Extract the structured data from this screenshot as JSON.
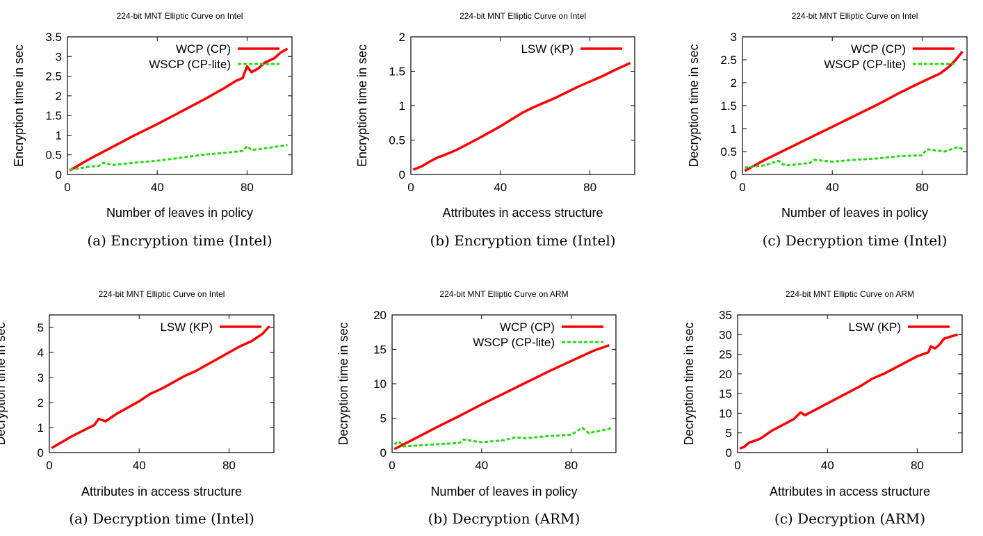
{
  "colors": {
    "wcp": "#ff0000",
    "wscp": "#22dd11",
    "axis": "#000000"
  },
  "chart_data": [
    {
      "type": "line",
      "title": "224-bit MNT Elliptic Curve on Intel",
      "xlabel": "Number of leaves in policy",
      "ylabel": "Encryption time in sec",
      "caption": "(a) Encryption time (Intel)",
      "xlim": [
        0,
        100
      ],
      "ylim": [
        0,
        3.5
      ],
      "xticks": [
        "0",
        "40",
        "80"
      ],
      "yticks": [
        "0",
        "0.5",
        "1",
        "1.5",
        "2",
        "2.5",
        "3",
        "3.5"
      ],
      "legend_position": "top-right",
      "series": [
        {
          "name": "WCP (CP)",
          "color": "#ff0000",
          "style": "solid",
          "x": [
            1,
            10,
            20,
            30,
            40,
            50,
            60,
            70,
            75,
            78,
            80,
            82,
            85,
            88,
            92,
            95,
            98
          ],
          "y": [
            0.1,
            0.4,
            0.7,
            1.0,
            1.28,
            1.58,
            1.88,
            2.2,
            2.38,
            2.45,
            2.75,
            2.6,
            2.7,
            2.85,
            2.95,
            3.1,
            3.2
          ]
        },
        {
          "name": "WSCP (CP-lite)",
          "color": "#22dd11",
          "style": "dashed",
          "x": [
            1,
            10,
            14,
            16,
            20,
            30,
            40,
            50,
            60,
            70,
            78,
            80,
            82,
            90,
            98
          ],
          "y": [
            0.12,
            0.2,
            0.22,
            0.3,
            0.24,
            0.3,
            0.35,
            0.42,
            0.5,
            0.55,
            0.6,
            0.72,
            0.62,
            0.68,
            0.75
          ]
        }
      ]
    },
    {
      "type": "line",
      "title": "224-bit MNT Elliptic Curve on Intel",
      "xlabel": "Attributes in access structure",
      "ylabel": "Encryption time in sec",
      "caption": "(b) Encryption time (Intel)",
      "xlim": [
        0,
        100
      ],
      "ylim": [
        0,
        2
      ],
      "xticks": [
        "0",
        "40",
        "80"
      ],
      "yticks": [
        "0",
        "0.5",
        "1",
        "1.5",
        "2"
      ],
      "legend_position": "top-right",
      "series": [
        {
          "name": "LSW (KP)",
          "color": "#ff0000",
          "style": "solid",
          "x": [
            1,
            5,
            8,
            12,
            14,
            20,
            30,
            40,
            45,
            50,
            55,
            60,
            65,
            70,
            75,
            80,
            85,
            90,
            98
          ],
          "y": [
            0.07,
            0.12,
            0.18,
            0.25,
            0.27,
            0.35,
            0.52,
            0.7,
            0.8,
            0.9,
            0.98,
            1.05,
            1.12,
            1.2,
            1.28,
            1.35,
            1.42,
            1.5,
            1.62
          ]
        }
      ]
    },
    {
      "type": "line",
      "title": "224-bit MNT Elliptic Curve on Intel",
      "xlabel": "Number of leaves in policy",
      "ylabel": "Decryption time in sec",
      "caption": "(c) Decryption time (Intel)",
      "xlim": [
        0,
        100
      ],
      "ylim": [
        0,
        3
      ],
      "xticks": [
        "0",
        "40",
        "80"
      ],
      "yticks": [
        "0",
        "0.5",
        "1",
        "1.5",
        "2",
        "2.5",
        "3"
      ],
      "legend_position": "top-right",
      "series": [
        {
          "name": "WCP (CP)",
          "color": "#ff0000",
          "style": "solid",
          "x": [
            1,
            10,
            20,
            30,
            40,
            50,
            60,
            70,
            80,
            88,
            92,
            95,
            98
          ],
          "y": [
            0.08,
            0.32,
            0.56,
            0.8,
            1.04,
            1.28,
            1.52,
            1.78,
            2.02,
            2.2,
            2.35,
            2.5,
            2.68
          ]
        },
        {
          "name": "WSCP (CP-lite)",
          "color": "#22dd11",
          "style": "dashed",
          "x": [
            1,
            10,
            16,
            18,
            20,
            30,
            32,
            40,
            50,
            60,
            70,
            80,
            82,
            90,
            96,
            98
          ],
          "y": [
            0.15,
            0.2,
            0.3,
            0.22,
            0.2,
            0.25,
            0.32,
            0.28,
            0.32,
            0.35,
            0.4,
            0.42,
            0.55,
            0.5,
            0.6,
            0.55
          ]
        }
      ]
    },
    {
      "type": "line",
      "title": "224-bit MNT Elliptic Curve on Intel",
      "xlabel": "Attributes in access structure",
      "ylabel": "Decryption time in sec",
      "caption": "(a) Decryption time (Intel)",
      "xlim": [
        0,
        100
      ],
      "ylim": [
        0,
        5.5
      ],
      "xticks": [
        "0",
        "40",
        "80"
      ],
      "yticks": [
        "0",
        "1",
        "2",
        "3",
        "4",
        "5"
      ],
      "legend_position": "top-right",
      "series": [
        {
          "name": "LSW (KP)",
          "color": "#ff0000",
          "style": "solid",
          "x": [
            1,
            10,
            20,
            22,
            25,
            30,
            40,
            45,
            50,
            55,
            60,
            65,
            70,
            75,
            80,
            85,
            90,
            95,
            98
          ],
          "y": [
            0.18,
            0.65,
            1.1,
            1.35,
            1.25,
            1.55,
            2.05,
            2.35,
            2.55,
            2.8,
            3.05,
            3.25,
            3.5,
            3.75,
            4.0,
            4.25,
            4.45,
            4.75,
            5.05
          ]
        }
      ]
    },
    {
      "type": "line",
      "title": "224-bit MNT Elliptic Curve on ARM",
      "xlabel": "Number of leaves in policy",
      "ylabel": "Decryption time in sec",
      "caption": "(b) Decryption (ARM)",
      "xlim": [
        0,
        100
      ],
      "ylim": [
        0,
        20
      ],
      "xticks": [
        "0",
        "40",
        "80"
      ],
      "yticks": [
        "0",
        "5",
        "10",
        "15",
        "20"
      ],
      "legend_position": "top-right",
      "series": [
        {
          "name": "WCP (CP)",
          "color": "#ff0000",
          "style": "solid",
          "x": [
            1,
            10,
            20,
            30,
            40,
            50,
            60,
            70,
            80,
            90,
            97
          ],
          "y": [
            0.5,
            2.0,
            3.7,
            5.3,
            7.0,
            8.6,
            10.2,
            11.8,
            13.3,
            14.8,
            15.6
          ]
        },
        {
          "name": "WSCP (CP-lite)",
          "color": "#22dd11",
          "style": "dashed",
          "x": [
            1,
            3,
            5,
            10,
            20,
            30,
            32,
            40,
            50,
            55,
            60,
            70,
            80,
            85,
            88,
            90,
            95,
            98
          ],
          "y": [
            1.2,
            1.6,
            0.9,
            1.0,
            1.2,
            1.4,
            1.9,
            1.5,
            1.8,
            2.2,
            2.1,
            2.4,
            2.6,
            3.6,
            2.8,
            3.0,
            3.3,
            3.6
          ]
        }
      ]
    },
    {
      "type": "line",
      "title": "224-bit MNT Elliptic Curve on ARM",
      "xlabel": "Attributes in access structure",
      "ylabel": "Decryption time in sec",
      "caption": "(c) Decryption (ARM)",
      "xlim": [
        0,
        100
      ],
      "ylim": [
        0,
        35
      ],
      "xticks": [
        "0",
        "40",
        "80"
      ],
      "yticks": [
        "0",
        "5",
        "10",
        "15",
        "20",
        "25",
        "30",
        "35"
      ],
      "legend_position": "top-right",
      "series": [
        {
          "name": "LSW (KP)",
          "color": "#ff0000",
          "style": "solid",
          "x": [
            1,
            3,
            5,
            10,
            15,
            20,
            25,
            28,
            30,
            35,
            40,
            45,
            50,
            55,
            60,
            65,
            70,
            75,
            80,
            85,
            86,
            88,
            90,
            92,
            95,
            98
          ],
          "y": [
            1.0,
            1.5,
            2.5,
            3.5,
            5.5,
            7.0,
            8.5,
            10.2,
            9.5,
            11.0,
            12.5,
            14.0,
            15.5,
            17.0,
            18.8,
            20.0,
            21.5,
            23.0,
            24.5,
            25.5,
            27.0,
            26.5,
            27.5,
            29.0,
            29.5,
            30.0
          ]
        }
      ]
    }
  ]
}
